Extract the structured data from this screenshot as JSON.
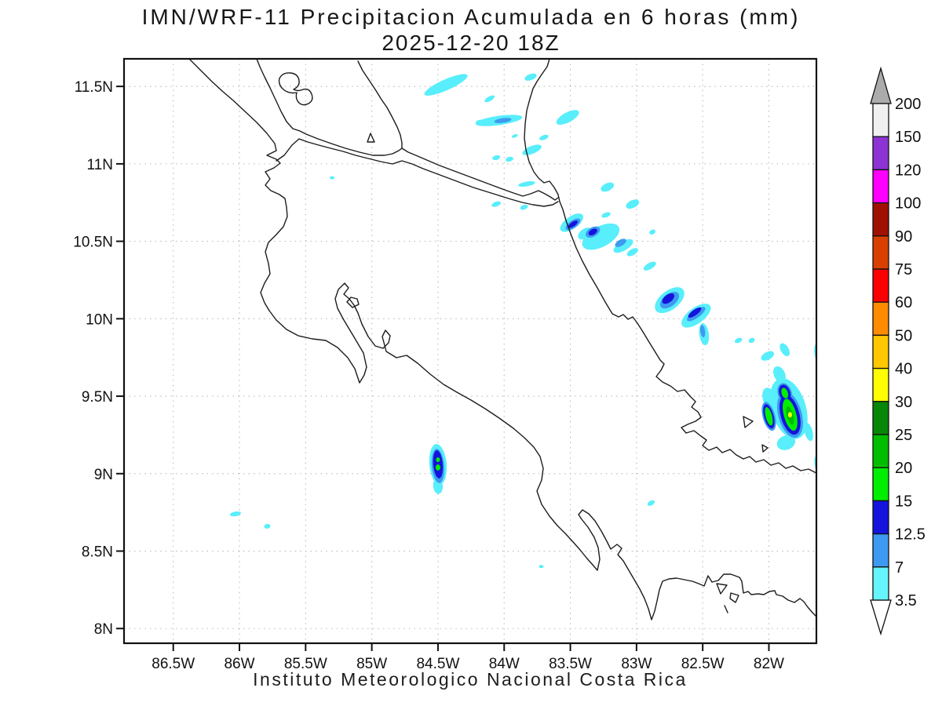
{
  "title": {
    "line1": "IMN/WRF-11 Precipitacion Acumulada en 6 horas (mm)",
    "line2": "2025-12-20 18Z"
  },
  "footer": {
    "text": "Instituto Meteorologico Nacional Costa Rica"
  },
  "axes": {
    "lat": {
      "labels": [
        "11.5N",
        "11N",
        "10.5N",
        "10N",
        "9.5N",
        "9N",
        "8.5N",
        "8N"
      ],
      "values": [
        11.5,
        11.0,
        10.5,
        10.0,
        9.5,
        9.0,
        8.5,
        8.0
      ]
    },
    "lon": {
      "labels": [
        "86.5W",
        "86W",
        "85.5W",
        "85W",
        "84.5W",
        "84W",
        "83.5W",
        "83W",
        "82.5W",
        "82W"
      ],
      "values": [
        -86.5,
        -86.0,
        -85.5,
        -85.0,
        -84.5,
        -84.0,
        -83.5,
        -83.0,
        -82.5,
        -82.0
      ]
    }
  },
  "colorbar": {
    "labels_top_down": [
      "200",
      "150",
      "120",
      "100",
      "90",
      "75",
      "60",
      "50",
      "40",
      "30",
      "25",
      "20",
      "15",
      "12.5",
      "7",
      "3.5"
    ],
    "over_arrow_color": "#ababab",
    "under_arrow_color": "#ffffff"
  },
  "chart_data": {
    "type": "heatmap",
    "title": "IMN/WRF-11 Precipitacion Acumulada en 6 horas (mm)",
    "valid": "2025-12-20 18Z",
    "units": "mm",
    "source": "Instituto Meteorologico Nacional Costa Rica",
    "extent": {
      "lon": [
        -86.872,
        -81.641
      ],
      "lat": [
        7.905,
        11.678
      ]
    },
    "grid": "dotted 0.5 degree",
    "legend_position": "right",
    "levels_mm": [
      3.5,
      7,
      12.5,
      15,
      20,
      25,
      30,
      40,
      50,
      60,
      75,
      90,
      100,
      120,
      150,
      200
    ],
    "colors_ascending": [
      "#66f4fd",
      "#3e9af0",
      "#1414dc",
      "#00ef00",
      "#00bd00",
      "#078607",
      "#fefe00",
      "#ffc800",
      "#ff8c00",
      "#fb0000",
      "#d94000",
      "#a01000",
      "#ff00ff",
      "#8d33d4",
      "#f0f0f0"
    ],
    "patch_levels": [
      {
        "name": "3.5-7mm",
        "color": "#58eefb",
        "ellipses": [
          [
            -84.44,
            11.51,
            0.178,
            0.035,
            -24
          ],
          [
            -83.8,
            11.56,
            0.047,
            0.02,
            -20
          ],
          [
            -84.11,
            11.42,
            0.042,
            0.015,
            -30
          ],
          [
            -84.04,
            11.28,
            0.178,
            0.03,
            -8
          ],
          [
            -84.18,
            11.27,
            0.036,
            0.015,
            -10
          ],
          [
            -83.52,
            11.3,
            0.095,
            0.032,
            -28
          ],
          [
            -83.7,
            11.17,
            0.036,
            0.015,
            -20
          ],
          [
            -83.79,
            11.09,
            0.077,
            0.025,
            -22
          ],
          [
            -83.92,
            11.18,
            0.024,
            0.01,
            -20
          ],
          [
            -84.06,
            11.04,
            0.03,
            0.015,
            -15
          ],
          [
            -83.96,
            11.03,
            0.03,
            0.015,
            -15
          ],
          [
            -83.83,
            10.87,
            0.065,
            0.015,
            -10
          ],
          [
            -83.22,
            10.85,
            0.053,
            0.025,
            -25
          ],
          [
            -84.06,
            10.74,
            0.036,
            0.015,
            -20
          ],
          [
            -83.85,
            10.72,
            0.03,
            0.015,
            -20
          ],
          [
            -83.23,
            10.67,
            0.036,
            0.015,
            -20
          ],
          [
            -83.03,
            10.74,
            0.053,
            0.025,
            -25
          ],
          [
            -83.49,
            10.62,
            0.101,
            0.04,
            -35
          ],
          [
            -83.39,
            10.55,
            0.059,
            0.03,
            -35
          ],
          [
            -83.27,
            10.53,
            0.154,
            0.066,
            -28
          ],
          [
            -83.1,
            10.47,
            0.083,
            0.03,
            -30
          ],
          [
            -83.03,
            10.43,
            0.047,
            0.02,
            -30
          ],
          [
            -82.88,
            10.56,
            0.024,
            0.015,
            -25
          ],
          [
            -82.9,
            10.34,
            0.053,
            0.02,
            -30
          ],
          [
            -82.75,
            10.12,
            0.13,
            0.061,
            -38
          ],
          [
            -82.55,
            10.02,
            0.13,
            0.051,
            -36
          ],
          [
            -82.49,
            9.9,
            0.036,
            0.071,
            -8
          ],
          [
            -82.23,
            9.86,
            0.03,
            0.015,
            -25
          ],
          [
            -82.13,
            9.86,
            0.024,
            0.015,
            -25
          ],
          [
            -82.01,
            9.76,
            0.053,
            0.025,
            -28
          ],
          [
            -81.88,
            9.8,
            0.03,
            0.046,
            -30
          ],
          [
            -81.92,
            9.64,
            0.042,
            0.056,
            -25
          ],
          [
            -82.0,
            9.49,
            0.047,
            0.066,
            -15
          ],
          [
            -81.97,
            9.38,
            0.042,
            0.061,
            -15
          ],
          [
            -81.85,
            9.42,
            0.13,
            0.202,
            -17
          ],
          [
            -81.87,
            9.2,
            0.071,
            0.046,
            -20
          ],
          [
            -81.7,
            9.27,
            0.03,
            0.061,
            -15
          ],
          [
            -81.63,
            9.77,
            0.024,
            0.066,
            -10
          ],
          [
            -81.63,
            9.06,
            0.024,
            0.056,
            -10
          ],
          [
            -84.5,
            9.06,
            0.065,
            0.132,
            -5
          ],
          [
            -84.5,
            8.92,
            0.036,
            0.051,
            -5
          ],
          [
            -86.03,
            8.74,
            0.042,
            0.015,
            -10
          ],
          [
            -85.79,
            8.66,
            0.024,
            0.015,
            -10
          ],
          [
            -85.3,
            10.91,
            0.018,
            0.01,
            0
          ],
          [
            -83.72,
            8.4,
            0.018,
            0.01,
            0
          ],
          [
            -82.89,
            8.81,
            0.03,
            0.015,
            -30
          ]
        ]
      },
      {
        "name": "7-12.5mm",
        "color": "#3e9af0",
        "ellipses": [
          [
            -84.01,
            11.28,
            0.065,
            0.015,
            -8
          ],
          [
            -83.48,
            10.61,
            0.065,
            0.025,
            -35
          ],
          [
            -83.33,
            10.56,
            0.059,
            0.03,
            -30
          ],
          [
            -83.12,
            10.49,
            0.047,
            0.02,
            -30
          ],
          [
            -82.75,
            10.12,
            0.083,
            0.04,
            -38
          ],
          [
            -82.55,
            10.03,
            0.083,
            0.025,
            -36
          ],
          [
            -82.5,
            9.92,
            0.018,
            0.04,
            -8
          ],
          [
            -81.84,
            9.38,
            0.089,
            0.152,
            -15
          ],
          [
            -82.0,
            9.37,
            0.047,
            0.096,
            -15
          ],
          [
            -81.88,
            9.52,
            0.053,
            0.066,
            -18
          ],
          [
            -84.5,
            9.05,
            0.047,
            0.111,
            -5
          ]
        ]
      },
      {
        "name": "12.5-15mm",
        "color": "#1414dc",
        "ellipses": [
          [
            -82.76,
            10.13,
            0.053,
            0.025,
            -38
          ],
          [
            -82.56,
            10.04,
            0.059,
            0.018,
            -36
          ],
          [
            -83.48,
            10.61,
            0.042,
            0.015,
            -35
          ],
          [
            -83.33,
            10.56,
            0.036,
            0.018,
            -30
          ],
          [
            -81.84,
            9.38,
            0.071,
            0.132,
            -15
          ],
          [
            -82.0,
            9.37,
            0.036,
            0.081,
            -15
          ],
          [
            -81.88,
            9.52,
            0.042,
            0.056,
            -18
          ],
          [
            -84.5,
            9.06,
            0.036,
            0.091,
            -5
          ]
        ]
      },
      {
        "name": "15-20mm",
        "color": "#00ef00",
        "ellipses": [
          [
            -81.84,
            9.38,
            0.047,
            0.106,
            -15
          ],
          [
            -82.0,
            9.37,
            0.024,
            0.061,
            -15
          ],
          [
            -81.88,
            9.52,
            0.024,
            0.035,
            -18
          ],
          [
            -84.5,
            9.09,
            0.015,
            0.015,
            0
          ],
          [
            -84.5,
            9.04,
            0.018,
            0.02,
            0
          ]
        ]
      },
      {
        "name": "20-25mm",
        "color": "#00bd00",
        "ellipses": [
          [
            -81.84,
            9.375,
            0.024,
            0.061,
            -15
          ]
        ]
      },
      {
        "name": "30-40mm",
        "color": "#fefe00",
        "ellipses": [
          [
            -81.84,
            9.38,
            0.015,
            0.018,
            0
          ]
        ]
      }
    ]
  }
}
